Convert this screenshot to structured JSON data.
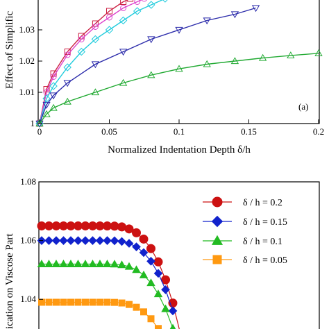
{
  "chart_data": [
    {
      "type": "line",
      "panel_label": "(a)",
      "xlabel": "Normalized Indentation Depth δ/h",
      "ylabel": "Effect of Simplific",
      "xlim": [
        0,
        0.2
      ],
      "ylim": [
        1,
        1.04
      ],
      "x_ticks": [
        "0",
        "0.05",
        "0.1",
        "0.15",
        "0.2"
      ],
      "y_ticks": [
        "1",
        "1.01",
        "1.02",
        "1.03"
      ],
      "grid": false,
      "series": [
        {
          "color": "#cc2244",
          "marker": "square",
          "x": [
            0,
            0.005,
            0.01,
            0.02,
            0.03,
            0.04,
            0.05,
            0.06,
            0.065
          ],
          "y": [
            1.0,
            1.011,
            1.016,
            1.023,
            1.028,
            1.032,
            1.036,
            1.039,
            1.04
          ]
        },
        {
          "color": "#dd44cc",
          "marker": "circle",
          "x": [
            0,
            0.005,
            0.01,
            0.02,
            0.03,
            0.04,
            0.05,
            0.06,
            0.07,
            0.075
          ],
          "y": [
            1.0,
            1.01,
            1.015,
            1.022,
            1.027,
            1.031,
            1.034,
            1.037,
            1.039,
            1.04
          ]
        },
        {
          "color": "#22ccdd",
          "marker": "diamond",
          "x": [
            0,
            0.005,
            0.01,
            0.02,
            0.03,
            0.04,
            0.05,
            0.06,
            0.07,
            0.08,
            0.09
          ],
          "y": [
            1.0,
            1.008,
            1.012,
            1.018,
            1.023,
            1.027,
            1.03,
            1.033,
            1.036,
            1.038,
            1.04
          ]
        },
        {
          "color": "#2a2aaa",
          "marker": "triangle-down",
          "x": [
            0,
            0.005,
            0.01,
            0.02,
            0.04,
            0.06,
            0.08,
            0.1,
            0.12,
            0.14,
            0.155
          ],
          "y": [
            1.0,
            1.006,
            1.009,
            1.013,
            1.019,
            1.023,
            1.027,
            1.03,
            1.033,
            1.035,
            1.037
          ]
        },
        {
          "color": "#22aa33",
          "marker": "triangle-up",
          "x": [
            0,
            0.005,
            0.01,
            0.02,
            0.04,
            0.06,
            0.08,
            0.1,
            0.12,
            0.14,
            0.16,
            0.18,
            0.2
          ],
          "y": [
            1.0,
            1.003,
            1.005,
            1.007,
            1.01,
            1.013,
            1.0155,
            1.0175,
            1.019,
            1.02,
            1.021,
            1.0218,
            1.0225
          ]
        }
      ]
    },
    {
      "type": "line",
      "ylabel": "ication on Viscose Part",
      "ylim": [
        1.028,
        1.08
      ],
      "y_ticks": [
        "1.04",
        "1.06",
        "1.08"
      ],
      "legend": "top-right",
      "grid": false,
      "series": [
        {
          "name": "δ / h = 0.2",
          "color": "#cc1111",
          "marker": "circle",
          "start": 1.065
        },
        {
          "name": "δ / h = 0.15",
          "color": "#1122cc",
          "marker": "diamond",
          "start": 1.06
        },
        {
          "name": "δ / h = 0.1",
          "color": "#22bb22",
          "marker": "triangle-up",
          "start": 1.052
        },
        {
          "name": "δ / h = 0.05",
          "color": "#ff9911",
          "marker": "square",
          "start": 1.039
        }
      ]
    }
  ]
}
